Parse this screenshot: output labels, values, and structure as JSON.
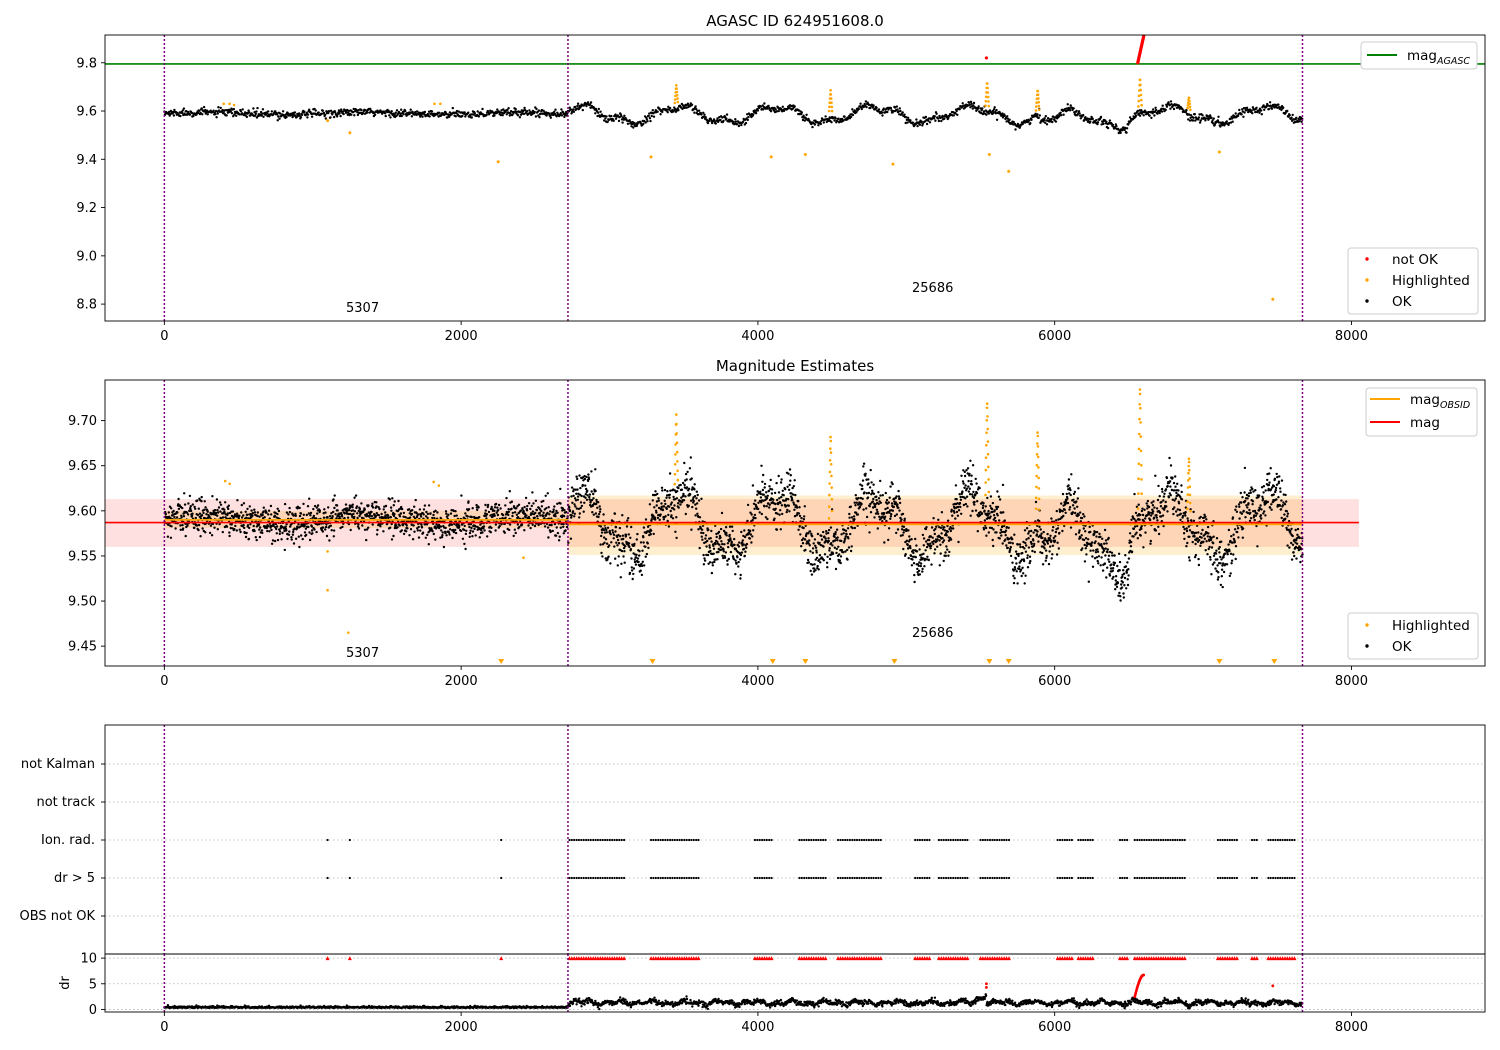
{
  "chart_data": [
    {
      "type": "scatter",
      "title": "AGASC ID 624951608.0",
      "xlim": [
        -400,
        8900
      ],
      "ylim": [
        8.73,
        9.915
      ],
      "x_ticks": [
        0,
        2000,
        4000,
        6000,
        8000
      ],
      "y_ticks": [
        8.8,
        9.0,
        9.2,
        9.4,
        9.6,
        9.8
      ],
      "grid": false,
      "boundaries_x": [
        0,
        2720,
        7670
      ],
      "obsid_labels": [
        {
          "text": "5307",
          "x": 1350,
          "y": 8.76
        },
        {
          "text": "25686",
          "x": 5190,
          "y": 8.84
        }
      ],
      "reference_lines": [
        {
          "name": "mag",
          "name_sub": "AGASC",
          "value": 9.795,
          "color": "#008000",
          "x_range": [
            -400,
            8900
          ]
        }
      ],
      "legend_top": {
        "position": "upper right",
        "entries": [
          {
            "label": "mag",
            "sub": "AGASC",
            "color": "#008000",
            "marker": "line"
          }
        ]
      },
      "legend_bottom": {
        "position": "lower right",
        "entries": [
          {
            "label": "not OK",
            "color": "#ff0000",
            "marker": "dot"
          },
          {
            "label": "Highlighted",
            "color": "#ffa500",
            "marker": "dot"
          },
          {
            "label": "OK",
            "color": "#000000",
            "marker": "dot"
          }
        ]
      },
      "series": [
        {
          "name": "OK",
          "color": "#000000",
          "points": "generated from obsid segments below"
        },
        {
          "name": "Highlighted",
          "color": "#ffa500",
          "x": [
            1100,
            1250,
            2250,
            3280,
            4090,
            4320,
            4910,
            5560,
            5690,
            7110,
            7470
          ],
          "y": [
            9.56,
            9.51,
            9.39,
            9.41,
            9.41,
            9.42,
            9.38,
            9.42,
            9.35,
            9.43,
            8.82
          ]
        },
        {
          "name": "not OK",
          "color": "#ff0000",
          "x_range": [
            6560,
            6600
          ],
          "y_range": [
            9.8,
            9.91
          ]
        }
      ]
    },
    {
      "type": "scatter",
      "title": "Magnitude Estimates",
      "xlim": [
        -400,
        8900
      ],
      "ylim": [
        9.428,
        9.745
      ],
      "x_ticks": [
        0,
        2000,
        4000,
        6000,
        8000
      ],
      "y_ticks": [
        9.45,
        9.5,
        9.55,
        9.6,
        9.65,
        9.7
      ],
      "y_tick_labels": [
        "9.45",
        "9.50",
        "9.55",
        "9.60",
        "9.65",
        "9.70"
      ],
      "grid": false,
      "boundaries_x": [
        0,
        2720,
        7670
      ],
      "obsid_labels": [
        {
          "text": "5307",
          "x": 1350,
          "y": 9.44
        },
        {
          "text": "25686",
          "x": 5190,
          "y": 9.46
        }
      ],
      "reference_lines": [
        {
          "name": "mag",
          "value": 9.587,
          "color": "#ff0000",
          "x_range": [
            -400,
            8050
          ],
          "band": [
            9.56,
            9.613
          ]
        },
        {
          "name": "mag",
          "name_sub": "OBSID",
          "segments": [
            {
              "x_range": [
                0,
                2720
              ],
              "value": 9.59,
              "band": [
                9.581,
                9.6
              ]
            },
            {
              "x_range": [
                2720,
                7670
              ],
              "value": 9.585,
              "band": [
                9.551,
                9.617
              ]
            }
          ],
          "color": "#ffa500"
        }
      ],
      "legend_top": {
        "position": "upper right",
        "entries": [
          {
            "label": "mag",
            "sub": "OBSID",
            "color": "#ffa500",
            "marker": "line"
          },
          {
            "label": "mag",
            "color": "#ff0000",
            "marker": "line"
          }
        ]
      },
      "legend_bottom": {
        "position": "lower right",
        "entries": [
          {
            "label": "Highlighted",
            "color": "#ffa500",
            "marker": "dot"
          },
          {
            "label": "OK",
            "color": "#000000",
            "marker": "dot"
          }
        ]
      },
      "obsid_segments": [
        {
          "x_range": [
            0,
            2720
          ],
          "mean": 9.59,
          "amplitude": 0.006,
          "noise": 0.009
        },
        {
          "x_range": [
            2720,
            7670
          ],
          "mean": 9.585,
          "amplitude": 0.038,
          "noise": 0.013
        }
      ],
      "out_of_range_markers_x": [
        2270,
        3290,
        4100,
        4320,
        4920,
        5560,
        5690,
        7110,
        7480
      ]
    },
    {
      "type": "scatter",
      "title": "",
      "xlim": [
        -400,
        8900
      ],
      "categories": [
        "OBS not OK",
        "dr > 5",
        "Ion. rad.",
        "not track",
        "not Kalman"
      ],
      "grid": true,
      "boundaries_x": [
        0,
        2720,
        7670
      ],
      "flag_x_ranges": [
        [
          1100,
          1100
        ],
        [
          1250,
          1250
        ],
        [
          2270,
          2270
        ],
        [
          2730,
          3100
        ],
        [
          3280,
          3600
        ],
        [
          3980,
          4100
        ],
        [
          4280,
          4460
        ],
        [
          4540,
          4840
        ],
        [
          5060,
          5160
        ],
        [
          5220,
          5420
        ],
        [
          5500,
          5700
        ],
        [
          6020,
          6120
        ],
        [
          6160,
          6260
        ],
        [
          6440,
          6500
        ],
        [
          6540,
          6880
        ],
        [
          7100,
          7240
        ],
        [
          7330,
          7370
        ],
        [
          7440,
          7620
        ]
      ]
    },
    {
      "type": "scatter",
      "title": "",
      "ylabel": "dr",
      "xlim": [
        -400,
        8900
      ],
      "ylim": [
        -0.5,
        10.8
      ],
      "x_ticks": [
        0,
        2000,
        4000,
        6000,
        8000
      ],
      "y_ticks": [
        0,
        5,
        10
      ],
      "grid": true,
      "boundaries_x": [
        0,
        2720,
        7670
      ],
      "series": [
        {
          "name": "OK",
          "color": "#000000",
          "segments": [
            {
              "x_range": [
                0,
                2720
              ],
              "mean": 0.3
            },
            {
              "x_range": [
                2720,
                7670
              ],
              "mean": 1.3
            }
          ]
        },
        {
          "name": "not OK",
          "color": "#ff0000",
          "x_range": [
            6540,
            6600
          ],
          "y_peak": 6.7
        },
        {
          "name": "clipped",
          "color": "#ff0000",
          "marker": "triangle",
          "y": 10
        }
      ]
    }
  ]
}
